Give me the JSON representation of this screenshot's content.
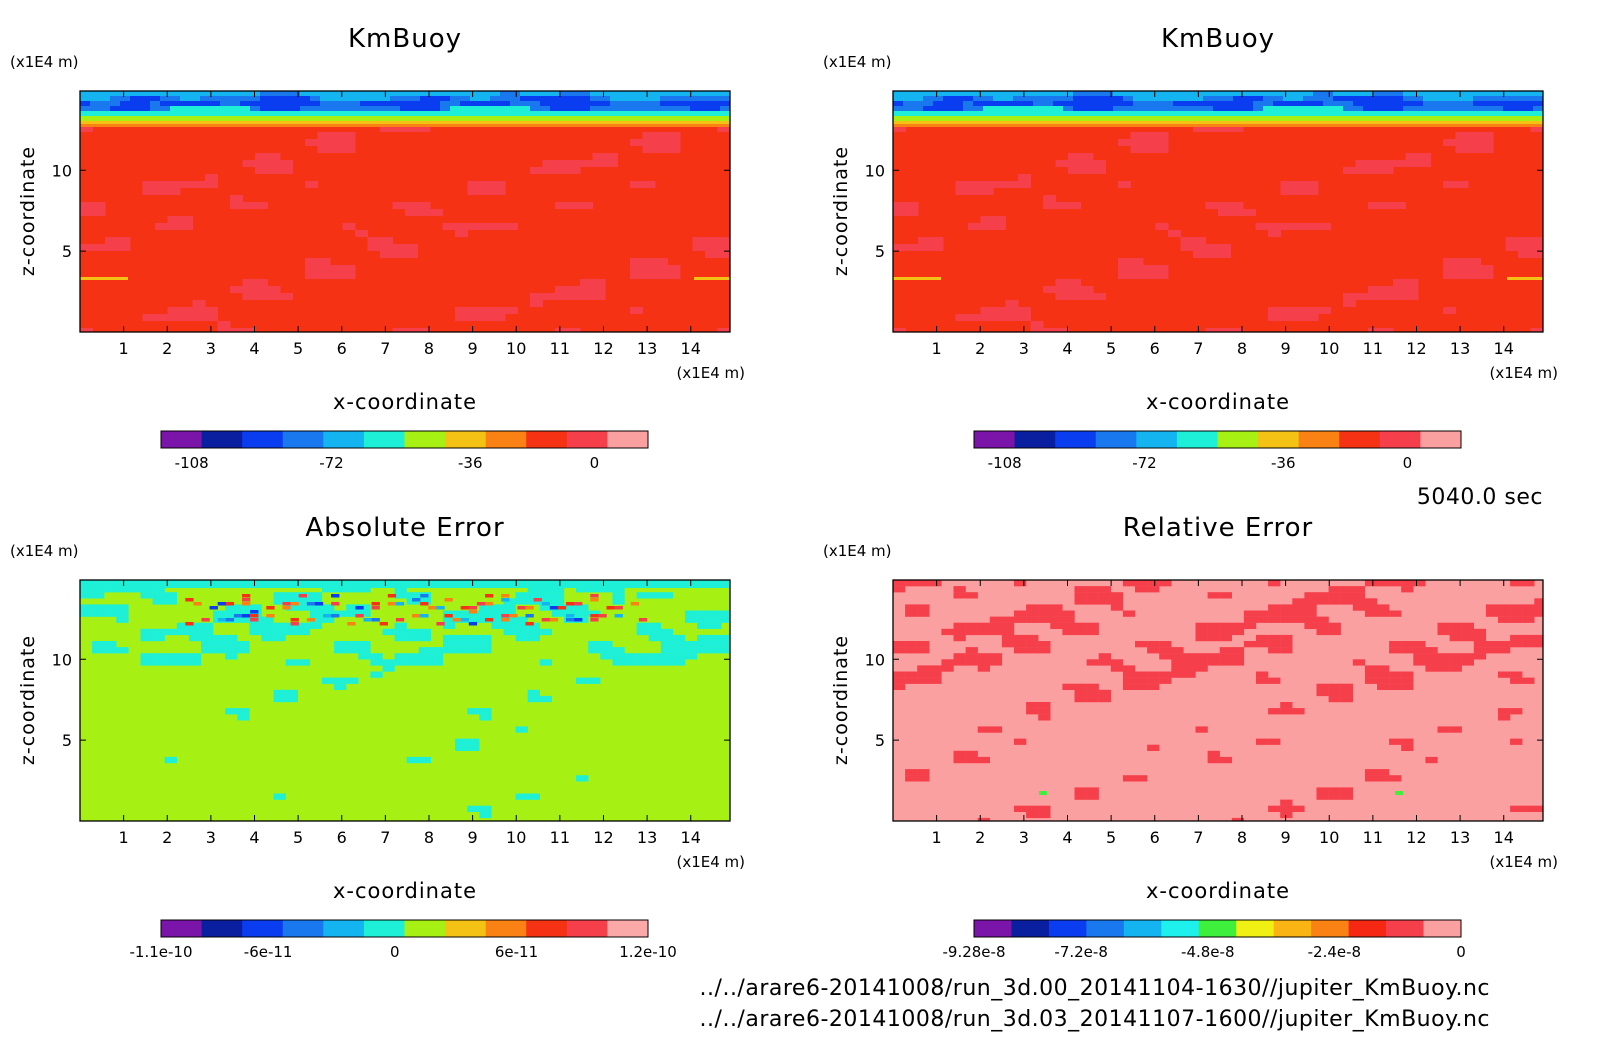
{
  "time_label": "5040.0 sec",
  "files": [
    "../../arare6-20141008/run_3d.00_20141104-1630//jupiter_KmBuoy.nc",
    "../../arare6-20141008/run_3d.03_20141107-1600//jupiter_KmBuoy.nc"
  ],
  "chart_data": [
    {
      "type": "heatmap",
      "title": "KmBuoy",
      "xlabel": "x-coordinate",
      "ylabel": "z-coordinate",
      "x_unit": "(x1E4 m)",
      "y_unit": "(x1E4 m)",
      "xlim": [
        0,
        14.9
      ],
      "ylim": [
        0,
        14.9
      ],
      "x_ticks": [
        "1",
        "2",
        "3",
        "4",
        "5",
        "6",
        "7",
        "8",
        "9",
        "10",
        "11",
        "12",
        "13",
        "14"
      ],
      "y_ticks": [
        "5",
        "10"
      ],
      "y_tick_values": [
        5,
        10
      ],
      "pattern": "kmbuoy",
      "colorbar": {
        "colors": [
          "#7b14a8",
          "#0a1ea0",
          "#0a3cf0",
          "#1a78ee",
          "#14b4f0",
          "#1ef0d8",
          "#a6f014",
          "#f4c214",
          "#fa8214",
          "#f63214",
          "#f5404c",
          "#fba0a0"
        ],
        "tick_labels": [
          "-108",
          "-72",
          "-36",
          "0"
        ],
        "tick_positions": [
          0.063,
          0.35,
          0.635,
          0.89
        ]
      },
      "summary": {
        "top_band_minimum": -108,
        "interior_value": 0,
        "top_band_z_range": [
          12.5,
          14.9
        ]
      }
    },
    {
      "type": "heatmap",
      "title": "KmBuoy",
      "xlabel": "x-coordinate",
      "ylabel": "z-coordinate",
      "x_unit": "(x1E4 m)",
      "y_unit": "(x1E4 m)",
      "xlim": [
        0,
        14.9
      ],
      "ylim": [
        0,
        14.9
      ],
      "x_ticks": [
        "1",
        "2",
        "3",
        "4",
        "5",
        "6",
        "7",
        "8",
        "9",
        "10",
        "11",
        "12",
        "13",
        "14"
      ],
      "y_ticks": [
        "5",
        "10"
      ],
      "y_tick_values": [
        5,
        10
      ],
      "pattern": "kmbuoy",
      "colorbar": {
        "colors": [
          "#7b14a8",
          "#0a1ea0",
          "#0a3cf0",
          "#1a78ee",
          "#14b4f0",
          "#1ef0d8",
          "#a6f014",
          "#f4c214",
          "#fa8214",
          "#f63214",
          "#f5404c",
          "#fba0a0"
        ],
        "tick_labels": [
          "-108",
          "-72",
          "-36",
          "0"
        ],
        "tick_positions": [
          0.063,
          0.35,
          0.635,
          0.89
        ]
      },
      "summary": {
        "top_band_minimum": -108,
        "interior_value": 0,
        "top_band_z_range": [
          12.5,
          14.9
        ]
      }
    },
    {
      "type": "heatmap",
      "title": "Absolute Error",
      "xlabel": "x-coordinate",
      "ylabel": "z-coordinate",
      "x_unit": "(x1E4 m)",
      "y_unit": "(x1E4 m)",
      "xlim": [
        0,
        14.9
      ],
      "ylim": [
        0,
        14.9
      ],
      "x_ticks": [
        "1",
        "2",
        "3",
        "4",
        "5",
        "6",
        "7",
        "8",
        "9",
        "10",
        "11",
        "12",
        "13",
        "14"
      ],
      "y_ticks": [
        "5",
        "10"
      ],
      "y_tick_values": [
        5,
        10
      ],
      "pattern": "abserr",
      "colorbar": {
        "colors": [
          "#7b14a8",
          "#0a1ea0",
          "#0a3cf0",
          "#1a78ee",
          "#14b4f0",
          "#1ef0d8",
          "#a6f014",
          "#f4c214",
          "#fa8214",
          "#f63214",
          "#f5404c",
          "#fba8a8"
        ],
        "tick_labels": [
          "-1.1e-10",
          "-6e-11",
          "0",
          "6e-11",
          "1.2e-10"
        ],
        "tick_positions": [
          0.0,
          0.22,
          0.48,
          0.73,
          1.0
        ]
      },
      "summary": {
        "min": -1.1e-10,
        "max": 1.2e-10,
        "background_value": 0
      }
    },
    {
      "type": "heatmap",
      "title": "Relative Error",
      "xlabel": "x-coordinate",
      "ylabel": "z-coordinate",
      "x_unit": "(x1E4 m)",
      "y_unit": "(x1E4 m)",
      "xlim": [
        0,
        14.9
      ],
      "ylim": [
        0,
        14.9
      ],
      "x_ticks": [
        "1",
        "2",
        "3",
        "4",
        "5",
        "6",
        "7",
        "8",
        "9",
        "10",
        "11",
        "12",
        "13",
        "14"
      ],
      "y_ticks": [
        "5",
        "10"
      ],
      "y_tick_values": [
        5,
        10
      ],
      "pattern": "relerr",
      "colorbar": {
        "colors": [
          "#7b14a8",
          "#0a1ea0",
          "#0a3cf0",
          "#1a78ee",
          "#14b4f0",
          "#1ef0ee",
          "#3ef03c",
          "#f0f014",
          "#fab414",
          "#fa8214",
          "#f62814",
          "#f5404c",
          "#fba0a0"
        ],
        "tick_labels": [
          "-9.28e-8",
          "-7.2e-8",
          "-4.8e-8",
          "-2.4e-8",
          "0"
        ],
        "tick_positions": [
          0.0,
          0.22,
          0.48,
          0.74,
          1.0
        ]
      },
      "summary": {
        "min": -9.28e-08,
        "max": 0,
        "background_value": 0
      }
    }
  ]
}
